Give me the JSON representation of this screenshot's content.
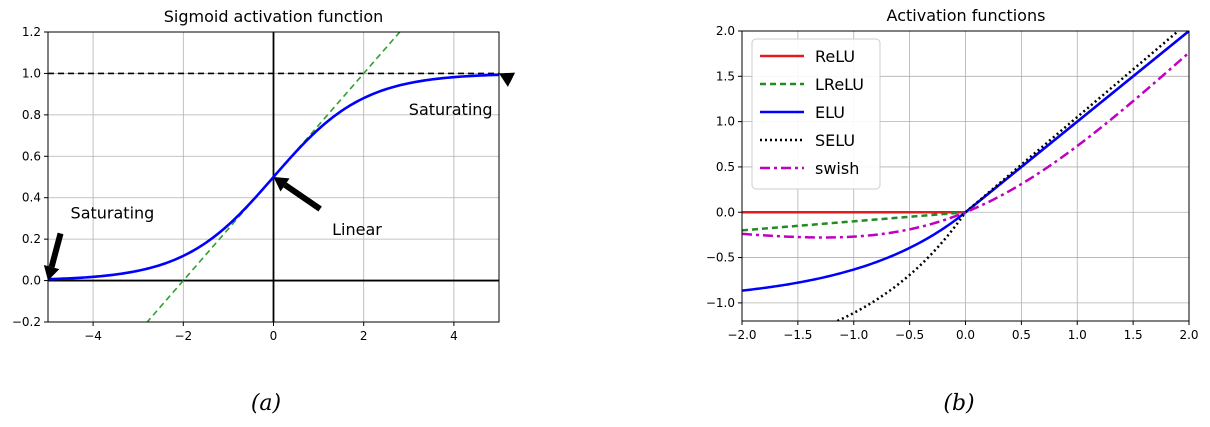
{
  "captions": [
    "(a)",
    "(b)"
  ],
  "chart_data": [
    {
      "type": "line",
      "title": "Sigmoid activation function",
      "xlim": [
        -5,
        5
      ],
      "ylim": [
        -0.2,
        1.2
      ],
      "xticks": [
        -4,
        -2,
        0,
        2,
        4
      ],
      "xtick_labels": [
        "−4",
        "−2",
        "0",
        "2",
        "4"
      ],
      "yticks": [
        -0.2,
        0.0,
        0.2,
        0.4,
        0.6,
        0.8,
        1.0,
        1.2
      ],
      "ytick_labels": [
        "−0.2",
        "0.0",
        "0.2",
        "0.4",
        "0.6",
        "0.8",
        "1.0",
        "1.2"
      ],
      "grid": true,
      "series": [
        {
          "function": "sigmoid",
          "color": "#0000ff",
          "style": "solid"
        },
        {
          "function": "tangent at 0: y = x/4 + 0.5",
          "color": "#2ca02c",
          "style": "dashed"
        },
        {
          "function": "y = 1",
          "color": "#000000",
          "style": "dashed"
        }
      ],
      "reference_lines": {
        "x0": 0,
        "y0": 0
      },
      "annotations": [
        {
          "text": "Saturating",
          "x": 3.0,
          "y": 0.8,
          "arrow_to": [
            5,
            1
          ]
        },
        {
          "text": "Saturating",
          "x": -4.5,
          "y": 0.3,
          "arrow_to": [
            -5,
            0
          ]
        },
        {
          "text": "Linear",
          "x": 1.3,
          "y": 0.22,
          "arrow_to": [
            0,
            0.5
          ]
        }
      ]
    },
    {
      "type": "line",
      "title": "Activation functions",
      "xlim": [
        -2.0,
        2.0
      ],
      "ylim": [
        -1.2,
        2.0
      ],
      "xticks": [
        -2.0,
        -1.5,
        -1.0,
        -0.5,
        0.0,
        0.5,
        1.0,
        1.5,
        2.0
      ],
      "xtick_labels": [
        "−2.0",
        "−1.5",
        "−1.0",
        "−0.5",
        "0.0",
        "0.5",
        "1.0",
        "1.5",
        "2.0"
      ],
      "yticks": [
        -1.0,
        -0.5,
        0.0,
        0.5,
        1.0,
        1.5,
        2.0
      ],
      "ytick_labels": [
        "−1.0",
        "−0.5",
        "0.0",
        "0.5",
        "1.0",
        "1.5",
        "2.0"
      ],
      "grid": true,
      "legend_position": "top-left",
      "series": [
        {
          "name": "ReLU",
          "function": "relu",
          "color": "#e41a1c",
          "style": "solid"
        },
        {
          "name": "LReLU",
          "function": "leaky_relu(alpha=0.1)",
          "color": "#228b22",
          "style": "dashed"
        },
        {
          "name": "ELU",
          "function": "elu(alpha=1)",
          "color": "#0000ff",
          "style": "solid"
        },
        {
          "name": "SELU",
          "function": "selu",
          "color": "#000000",
          "style": "dotted"
        },
        {
          "name": "swish",
          "function": "swish",
          "color": "#c000c0",
          "style": "dashdot"
        }
      ]
    }
  ]
}
